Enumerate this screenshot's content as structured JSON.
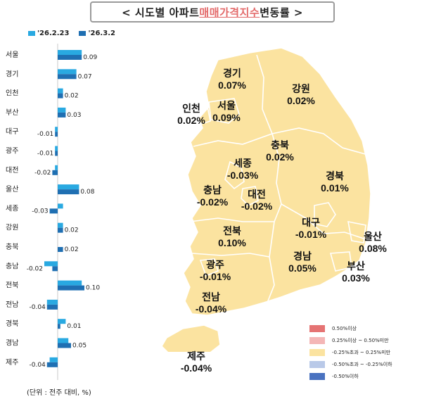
{
  "title": {
    "prefix": "< 시도별 아파트 ",
    "highlight": "매매가격지수",
    "suffix": " 변동률 >"
  },
  "unit_label": "(단위 : 전주 대비, %)",
  "colors": {
    "series_prev": "#29a9e1",
    "series_curr": "#1f6fb2",
    "map_fill": "#fbe3a0",
    "map_stroke": "#ffffff"
  },
  "chart_data": {
    "type": "bar",
    "orientation": "horizontal",
    "categories": [
      "서울",
      "경기",
      "인천",
      "부산",
      "대구",
      "광주",
      "대전",
      "울산",
      "세종",
      "강원",
      "충북",
      "충남",
      "전북",
      "전남",
      "경북",
      "경남",
      "제주"
    ],
    "series": [
      {
        "name": "'26.2.23",
        "values": [
          0.09,
          0.07,
          0.02,
          0.03,
          -0.01,
          -0.01,
          -0.01,
          0.08,
          0.02,
          0.02,
          0.0,
          -0.05,
          0.09,
          -0.04,
          0.03,
          0.04,
          -0.03
        ]
      },
      {
        "name": "'26.3.2",
        "values": [
          0.09,
          0.07,
          0.02,
          0.03,
          -0.01,
          -0.01,
          -0.02,
          0.08,
          -0.03,
          0.02,
          0.02,
          -0.02,
          0.1,
          -0.04,
          0.01,
          0.05,
          -0.04
        ]
      }
    ],
    "data_labels": [
      "0.09",
      "0.07",
      "0.02",
      "0.03",
      "-0.01",
      "-0.01",
      "-0.02",
      "0.08",
      "-0.03",
      "0.02",
      "0.02",
      "-0.02",
      "0.10",
      "-0.04",
      "0.01",
      "0.05",
      "-0.04"
    ]
  },
  "map_regions": [
    {
      "name": "경기",
      "value": "0.07%"
    },
    {
      "name": "강원",
      "value": "0.02%"
    },
    {
      "name": "인천",
      "value": "0.02%"
    },
    {
      "name": "서울",
      "value": "0.09%"
    },
    {
      "name": "충북",
      "value": "0.02%"
    },
    {
      "name": "세종",
      "value": "-0.03%"
    },
    {
      "name": "충남",
      "value": "-0.02%"
    },
    {
      "name": "대전",
      "value": "-0.02%"
    },
    {
      "name": "경북",
      "value": "0.01%"
    },
    {
      "name": "대구",
      "value": "-0.01%"
    },
    {
      "name": "전북",
      "value": "0.10%"
    },
    {
      "name": "울산",
      "value": "0.08%"
    },
    {
      "name": "경남",
      "value": "0.05%"
    },
    {
      "name": "부산",
      "value": "0.03%"
    },
    {
      "name": "광주",
      "value": "-0.01%"
    },
    {
      "name": "전남",
      "value": "-0.04%"
    },
    {
      "name": "제주",
      "value": "-0.04%"
    }
  ],
  "map_legend": [
    {
      "label": "0.50%이상",
      "color": "#e57373"
    },
    {
      "label": "0.25%이상 ~ 0.50%미만",
      "color": "#f4b6b6"
    },
    {
      "label": "-0.25%초과 ~ 0.25%미만",
      "color": "#fbe3a0"
    },
    {
      "label": "-0.50%초과 ~ -0.25%이하",
      "color": "#b9c9e8"
    },
    {
      "label": "-0.50%이하",
      "color": "#4a72c0"
    }
  ]
}
